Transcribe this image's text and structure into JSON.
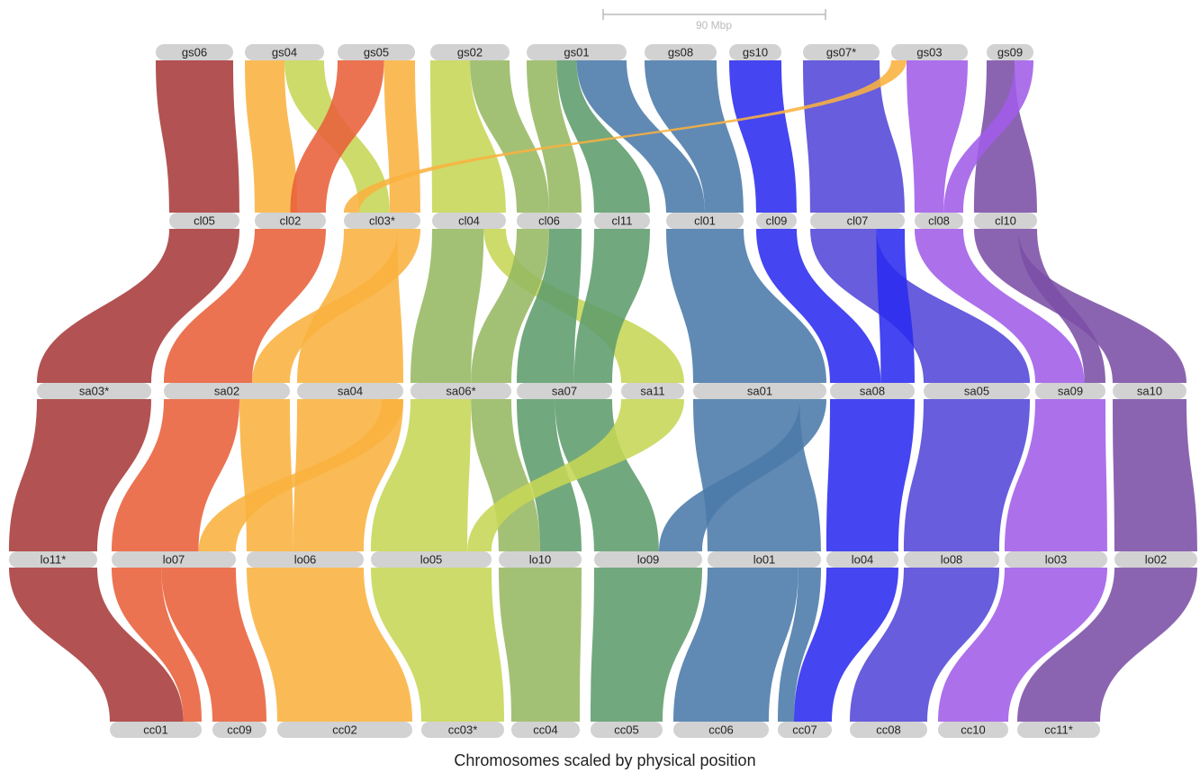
{
  "scale_bar": "90 Mbp",
  "rows": [
    [
      "gs06",
      "gs04",
      "gs05",
      "gs02",
      "gs01",
      "gs08",
      "gs10",
      "gs07*",
      "gs03",
      "gs09"
    ],
    [
      "cl05",
      "cl02",
      "cl03*",
      "cl04",
      "cl06",
      "cl11",
      "cl01",
      "cl09",
      "cl07",
      "cl08",
      "cl10"
    ],
    [
      "sa03*",
      "sa02",
      "sa04",
      "sa06*",
      "sa07",
      "sa11",
      "sa01",
      "sa08",
      "sa05",
      "sa09",
      "sa10"
    ],
    [
      "lo11*",
      "lo07",
      "lo06",
      "lo05",
      "lo10",
      "lo09",
      "lo01",
      "lo04",
      "lo08",
      "lo03",
      "lo02"
    ],
    [
      "cc01",
      "cc09",
      "cc02",
      "cc03*",
      "cc04",
      "cc05",
      "cc06",
      "cc07",
      "cc08",
      "cc10",
      "cc11*"
    ]
  ],
  "caption": "Chromosomes scaled by physical position"
}
